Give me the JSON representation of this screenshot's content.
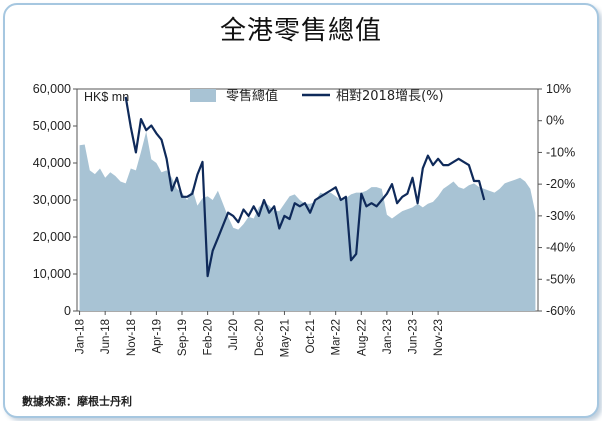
{
  "title": "全港零售總值",
  "source": "數據來源：摩根士丹利",
  "colors": {
    "area": "#a8c3d4",
    "line": "#0f2a5a"
  },
  "chart_data": {
    "type": "area",
    "unit_label": "HK$ mn",
    "legend_position": "top",
    "series": [
      {
        "name": "零售總值",
        "axis": "left",
        "kind": "area"
      },
      {
        "name": "相對2018增長(%)",
        "axis": "right",
        "kind": "line"
      }
    ],
    "y_left": {
      "range": [
        0,
        60000
      ],
      "ticks": [
        "0",
        "10,000",
        "20,000",
        "30,000",
        "40,000",
        "50,000",
        "60,000"
      ]
    },
    "y_right": {
      "range": [
        -60,
        10
      ],
      "ticks": [
        "-60%",
        "-50%",
        "-40%",
        "-30%",
        "-20%",
        "-10%",
        "0%",
        "10%"
      ]
    },
    "x_ticks": [
      "Jan-18",
      "Jun-18",
      "Nov-18",
      "Apr-19",
      "Sep-19",
      "Feb-20",
      "Jul-20",
      "Dec-20",
      "May-21",
      "Oct-21",
      "Mar-22",
      "Aug-22",
      "Jan-23",
      "Jun-23",
      "Nov-23"
    ],
    "months_start": "2018-01",
    "retail_values": [
      44800,
      45000,
      38000,
      37000,
      38500,
      36000,
      37500,
      36500,
      35000,
      34500,
      38500,
      38000,
      43000,
      48500,
      41000,
      40000,
      37500,
      38000,
      36000,
      33000,
      32000,
      30000,
      33000,
      28500,
      30500,
      31000,
      30000,
      32500,
      29000,
      25500,
      22500,
      22000,
      23500,
      25500,
      25000,
      28000,
      29500,
      28500,
      27000,
      27000,
      29000,
      31000,
      31500,
      30000,
      29000,
      29000,
      29500,
      32000,
      31500,
      32000,
      31000,
      30000,
      30500,
      31500,
      32000,
      32000,
      32500,
      33500,
      33500,
      33000,
      26000,
      25000,
      26000,
      27000,
      27500,
      28000,
      29000,
      28000,
      29000,
      29500,
      31000,
      33000,
      34000,
      35000,
      33500,
      33000,
      34000,
      34500,
      33500,
      33000,
      32500,
      32000,
      33000,
      34500,
      35000,
      35500,
      36000,
      35000,
      33000,
      26500
    ],
    "growth_values": [
      null,
      null,
      null,
      null,
      null,
      null,
      null,
      null,
      null,
      null,
      null,
      null,
      null,
      null,
      null,
      null,
      null,
      null,
      null,
      null,
      null,
      null,
      null,
      null,
      null,
      null,
      null,
      null,
      null,
      null,
      null,
      null,
      null,
      null,
      null,
      null,
      null,
      null,
      null,
      null,
      null,
      null,
      null,
      null,
      null,
      null,
      null,
      null,
      null,
      null,
      null,
      null,
      null,
      null,
      null,
      null,
      null,
      null,
      null,
      null,
      null,
      null,
      null,
      null,
      null,
      null,
      null,
      null,
      null,
      null,
      null,
      null,
      null,
      null,
      null,
      null,
      null,
      null,
      null,
      null,
      null,
      null,
      null,
      null,
      null,
      null,
      null,
      null,
      null,
      null
    ],
    "growth_series": [
      [
        9,
        7.5
      ],
      [
        10,
        -2
      ],
      [
        11,
        -10
      ],
      [
        12,
        0.5
      ],
      [
        13,
        -3
      ],
      [
        14,
        -1.5
      ],
      [
        15,
        -4
      ],
      [
        16,
        -6
      ],
      [
        17,
        -12
      ],
      [
        18,
        -22
      ],
      [
        19,
        -18
      ],
      [
        20,
        -24
      ],
      [
        21,
        -24
      ],
      [
        22,
        -23
      ],
      [
        23,
        -17
      ],
      [
        24,
        -13
      ],
      [
        25,
        -49
      ],
      [
        26,
        -41
      ],
      [
        27,
        -37
      ],
      [
        28,
        -33
      ],
      [
        29,
        -29
      ],
      [
        30,
        -30
      ],
      [
        31,
        -32
      ],
      [
        32,
        -28
      ],
      [
        33,
        -30
      ],
      [
        34,
        -27
      ],
      [
        35,
        -30
      ],
      [
        36,
        -25
      ],
      [
        37,
        -29
      ],
      [
        38,
        -27
      ],
      [
        39,
        -34
      ],
      [
        40,
        -30
      ],
      [
        41,
        -31
      ],
      [
        42,
        -26
      ],
      [
        43,
        -27
      ],
      [
        44,
        -26
      ],
      [
        45,
        -29
      ],
      [
        46,
        -25
      ],
      [
        47,
        -24
      ],
      [
        48,
        -23
      ],
      [
        49,
        -22
      ],
      [
        50,
        -21
      ],
      [
        51,
        -25
      ],
      [
        52,
        -24
      ],
      [
        53,
        -44
      ],
      [
        54,
        -42
      ],
      [
        55,
        -23
      ],
      [
        56,
        -27
      ],
      [
        57,
        -26
      ],
      [
        58,
        -27
      ],
      [
        59,
        -25
      ],
      [
        60,
        -23
      ],
      [
        61,
        -20
      ],
      [
        62,
        -26
      ],
      [
        63,
        -24
      ],
      [
        64,
        -23
      ],
      [
        65,
        -18
      ],
      [
        66,
        -26
      ],
      [
        67,
        -15
      ],
      [
        68,
        -11
      ],
      [
        69,
        -14
      ],
      [
        70,
        -12
      ],
      [
        71,
        -14
      ],
      [
        72,
        -14
      ],
      [
        73,
        -13
      ],
      [
        74,
        -12
      ],
      [
        75,
        -13
      ],
      [
        76,
        -14
      ],
      [
        77,
        -19
      ],
      [
        78,
        -19
      ],
      [
        79,
        -25
      ]
    ]
  }
}
